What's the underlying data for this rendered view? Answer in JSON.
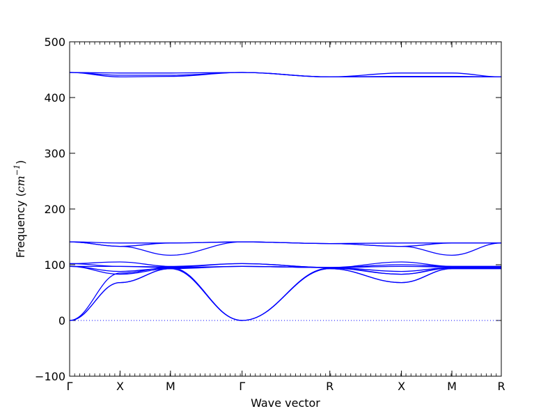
{
  "chart_data": {
    "type": "line",
    "xlabel": "Wave vector",
    "ylabel": {
      "prefix": "Frequency (",
      "unit": "cm",
      "exponent": "−1",
      "suffix": ")"
    },
    "ylim": [
      -100,
      500
    ],
    "yticks": [
      "−100",
      "0",
      "100",
      "200",
      "300",
      "400",
      "500"
    ],
    "ytick_values": [
      -100,
      0,
      100,
      200,
      300,
      400,
      500
    ],
    "xlim": [
      0,
      4.28
    ],
    "high_symmetry_points": [
      {
        "label": "Γ",
        "x": 0
      },
      {
        "label": "X",
        "x": 0.5
      },
      {
        "label": "M",
        "x": 1.0
      },
      {
        "label": "Γ",
        "x": 1.71
      },
      {
        "label": "R",
        "x": 2.58
      },
      {
        "label": "X",
        "x": 3.29
      },
      {
        "label": "M",
        "x": 3.79
      },
      {
        "label": "R",
        "x": 4.28
      }
    ],
    "zero_line": true,
    "line_color": "#0000ff",
    "zero_line_color": "#0000ff",
    "series": [
      {
        "values": [
          [
            0,
            0
          ],
          [
            0.5,
            68
          ],
          [
            1.0,
            93
          ],
          [
            1.71,
            0
          ],
          [
            2.58,
            93
          ],
          [
            3.29,
            68
          ],
          [
            3.79,
            93
          ],
          [
            4.28,
            93
          ]
        ]
      },
      {
        "values": [
          [
            0,
            0
          ],
          [
            0.5,
            68
          ],
          [
            1.0,
            93
          ],
          [
            1.71,
            0
          ],
          [
            2.58,
            93
          ],
          [
            3.29,
            68
          ],
          [
            3.79,
            93
          ],
          [
            4.28,
            93
          ]
        ]
      },
      {
        "values": [
          [
            0,
            0
          ],
          [
            0.5,
            85
          ],
          [
            1.0,
            95
          ],
          [
            1.71,
            0
          ],
          [
            2.58,
            94
          ],
          [
            3.29,
            83
          ],
          [
            3.79,
            94
          ],
          [
            4.28,
            94
          ]
        ]
      },
      {
        "values": [
          [
            0,
            97
          ],
          [
            0.5,
            83
          ],
          [
            1.0,
            93
          ],
          [
            1.71,
            97
          ],
          [
            2.58,
            95
          ],
          [
            3.29,
            83
          ],
          [
            3.79,
            95
          ],
          [
            4.28,
            95
          ]
        ]
      },
      {
        "values": [
          [
            0,
            97
          ],
          [
            0.5,
            88
          ],
          [
            1.0,
            94
          ],
          [
            1.71,
            97
          ],
          [
            2.58,
            95
          ],
          [
            3.29,
            88
          ],
          [
            3.79,
            95
          ],
          [
            4.28,
            95
          ]
        ]
      },
      {
        "values": [
          [
            0,
            97
          ],
          [
            0.5,
            97
          ],
          [
            1.0,
            95
          ],
          [
            1.71,
            97
          ],
          [
            2.58,
            95
          ],
          [
            3.29,
            97
          ],
          [
            3.79,
            96
          ],
          [
            4.28,
            96
          ]
        ]
      },
      {
        "values": [
          [
            0,
            102
          ],
          [
            0.5,
            97
          ],
          [
            1.0,
            96
          ],
          [
            1.71,
            102
          ],
          [
            2.58,
            95
          ],
          [
            3.29,
            100
          ],
          [
            3.79,
            97
          ],
          [
            4.28,
            97
          ]
        ]
      },
      {
        "values": [
          [
            0,
            102
          ],
          [
            0.5,
            105
          ],
          [
            1.0,
            97
          ],
          [
            1.71,
            102
          ],
          [
            2.58,
            95
          ],
          [
            3.29,
            105
          ],
          [
            3.79,
            97
          ],
          [
            4.28,
            97
          ]
        ]
      },
      {
        "values": [
          [
            0,
            141
          ],
          [
            0.5,
            133
          ],
          [
            1.0,
            117
          ],
          [
            1.71,
            141
          ],
          [
            2.58,
            138
          ],
          [
            3.29,
            133
          ],
          [
            3.79,
            117
          ],
          [
            4.28,
            139
          ]
        ]
      },
      {
        "values": [
          [
            0,
            141
          ],
          [
            0.5,
            133
          ],
          [
            1.0,
            139
          ],
          [
            1.71,
            141
          ],
          [
            2.58,
            138
          ],
          [
            3.29,
            133
          ],
          [
            3.79,
            139
          ],
          [
            4.28,
            139
          ]
        ]
      },
      {
        "values": [
          [
            0,
            141
          ],
          [
            0.5,
            139
          ],
          [
            1.0,
            139
          ],
          [
            1.71,
            141
          ],
          [
            2.58,
            138
          ],
          [
            3.29,
            139
          ],
          [
            3.79,
            139
          ],
          [
            4.28,
            139
          ]
        ]
      },
      {
        "values": [
          [
            0,
            445
          ],
          [
            0.5,
            437
          ],
          [
            1.0,
            438
          ],
          [
            1.71,
            445
          ],
          [
            2.58,
            437
          ],
          [
            3.29,
            437
          ],
          [
            3.79,
            437
          ],
          [
            4.28,
            437
          ]
        ]
      },
      {
        "values": [
          [
            0,
            445
          ],
          [
            0.5,
            440
          ],
          [
            1.0,
            440
          ],
          [
            1.71,
            445
          ],
          [
            2.58,
            437
          ],
          [
            3.29,
            438
          ],
          [
            3.79,
            438
          ],
          [
            4.28,
            437
          ]
        ]
      },
      {
        "values": [
          [
            0,
            445
          ],
          [
            0.5,
            444
          ],
          [
            1.0,
            444
          ],
          [
            1.71,
            445
          ],
          [
            2.58,
            437
          ],
          [
            3.29,
            444
          ],
          [
            3.79,
            444
          ],
          [
            4.28,
            437
          ]
        ]
      }
    ]
  }
}
